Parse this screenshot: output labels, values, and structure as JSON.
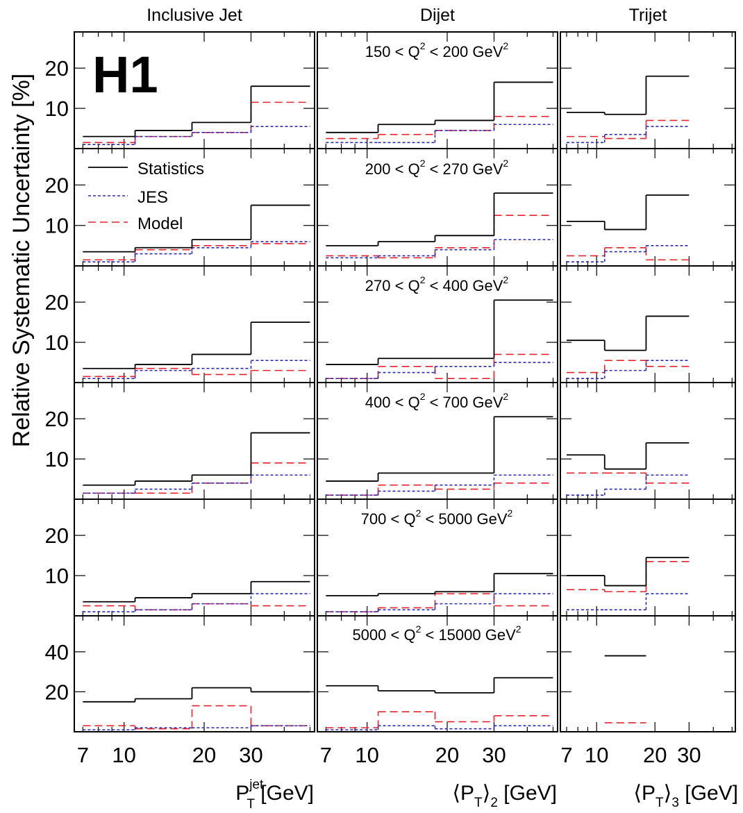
{
  "figure": {
    "ylabel": "Relative Systematic Uncertainty [%]",
    "logo": "H1",
    "column_titles": [
      "Inclusive Jet",
      "Dijet",
      "Trijet"
    ],
    "x_axis_labels": [
      {
        "base": "P",
        "sub": "T",
        "sup": "jet",
        "unit": " [GeV]"
      },
      {
        "base": "⟨P",
        "sub": "T",
        "close": "⟩",
        "sub2": "2",
        "unit": " [GeV]"
      },
      {
        "base": "⟨P",
        "sub": "T",
        "close": "⟩",
        "sub2": "3",
        "unit": " [GeV]"
      }
    ],
    "row_labels": [
      {
        "pre": "150 < Q",
        "sup": "2",
        "post": " < 200 GeV",
        "sup2": "2"
      },
      {
        "pre": "200 < Q",
        "sup": "2",
        "post": " < 270 GeV",
        "sup2": "2"
      },
      {
        "pre": "270 < Q",
        "sup": "2",
        "post": " < 400 GeV",
        "sup2": "2"
      },
      {
        "pre": "400 < Q",
        "sup": "2",
        "post": " < 700 GeV",
        "sup2": "2"
      },
      {
        "pre": "700 < Q",
        "sup": "2",
        "post": " < 5000 GeV",
        "sup2": "2"
      },
      {
        "pre": "5000 < Q",
        "sup": "2",
        "post": " < 15000 GeV",
        "sup2": "2"
      }
    ],
    "legend": [
      {
        "name": "Statistics",
        "color": "#000000",
        "dash": "solid"
      },
      {
        "name": "JES",
        "color": "#2a2ab8",
        "dash": "dotted"
      },
      {
        "name": "Model",
        "color": "#e8212a",
        "dash": "dashed"
      }
    ]
  },
  "chart_data": {
    "type": "step-histogram grid",
    "x_scale": "log",
    "xlim": [
      6.5,
      52
    ],
    "x_ticks": [
      7,
      10,
      20,
      30
    ],
    "row_ylim": [
      [
        0,
        29
      ],
      [
        0,
        29
      ],
      [
        0,
        29
      ],
      [
        0,
        29
      ],
      [
        0,
        29
      ],
      [
        0,
        58
      ]
    ],
    "row_yticks": [
      [
        10,
        20
      ],
      [
        10,
        20
      ],
      [
        10,
        20
      ],
      [
        10,
        20
      ],
      [
        10,
        20
      ],
      [
        20,
        40
      ]
    ],
    "bin_edges": {
      "inclusive": [
        7,
        11,
        18,
        30,
        50
      ],
      "dijet": [
        7,
        11,
        18,
        30,
        50
      ],
      "trijet": [
        7,
        11,
        18,
        30
      ]
    },
    "panels": [
      {
        "row": 0,
        "col": 0,
        "Statistics": [
          3,
          4.5,
          6.5,
          15.5
        ],
        "JES": [
          1,
          3,
          4,
          5.5
        ],
        "Model": [
          1.5,
          3,
          4,
          11.5
        ]
      },
      {
        "row": 0,
        "col": 1,
        "Statistics": [
          4,
          6,
          7,
          16.5
        ],
        "JES": [
          1.5,
          1.5,
          4.5,
          6
        ],
        "Model": [
          2.5,
          3.5,
          4.5,
          8
        ]
      },
      {
        "row": 0,
        "col": 2,
        "Statistics": [
          9,
          8.5,
          18
        ],
        "JES": [
          1.5,
          3.5,
          5.5
        ],
        "Model": [
          3,
          2.5,
          7
        ]
      },
      {
        "row": 1,
        "col": 0,
        "Statistics": [
          3.5,
          4.5,
          6.5,
          15
        ],
        "JES": [
          1,
          3,
          4.5,
          6
        ],
        "Model": [
          1.5,
          4,
          5,
          5.5
        ]
      },
      {
        "row": 1,
        "col": 1,
        "Statistics": [
          5,
          6,
          7.5,
          18
        ],
        "JES": [
          2,
          2.5,
          4,
          6.5
        ],
        "Model": [
          2.5,
          2,
          4.5,
          12.5
        ]
      },
      {
        "row": 1,
        "col": 2,
        "Statistics": [
          11,
          9,
          17.5
        ],
        "JES": [
          1,
          3.5,
          5
        ],
        "Model": [
          2.5,
          4.5,
          1.5
        ]
      },
      {
        "row": 2,
        "col": 0,
        "Statistics": [
          3.5,
          4.5,
          7,
          15
        ],
        "JES": [
          1,
          3,
          3.5,
          5.5
        ],
        "Model": [
          1.5,
          3.5,
          2,
          3
        ]
      },
      {
        "row": 2,
        "col": 1,
        "Statistics": [
          4.5,
          6,
          6,
          20.5
        ],
        "JES": [
          1,
          2.5,
          4,
          5
        ],
        "Model": [
          1,
          4,
          1,
          7
        ]
      },
      {
        "row": 2,
        "col": 2,
        "Statistics": [
          10.5,
          8,
          16.5
        ],
        "JES": [
          1,
          3,
          5.5
        ],
        "Model": [
          2.5,
          5.5,
          4
        ]
      },
      {
        "row": 3,
        "col": 0,
        "Statistics": [
          3.5,
          4.5,
          6,
          16.5
        ],
        "JES": [
          1.5,
          2.5,
          4,
          6
        ],
        "Model": [
          1.5,
          1.5,
          4,
          9
        ]
      },
      {
        "row": 3,
        "col": 1,
        "Statistics": [
          4.5,
          6.5,
          6.5,
          20.5
        ],
        "JES": [
          1,
          2,
          3.5,
          6
        ],
        "Model": [
          1,
          3.5,
          2.5,
          4
        ]
      },
      {
        "row": 3,
        "col": 2,
        "Statistics": [
          11,
          7.5,
          14
        ],
        "JES": [
          1,
          2.5,
          6
        ],
        "Model": [
          6.5,
          6.5,
          4
        ]
      },
      {
        "row": 4,
        "col": 0,
        "Statistics": [
          3.5,
          4.5,
          5.5,
          8.5
        ],
        "JES": [
          1,
          1.5,
          3,
          5.5
        ],
        "Model": [
          2.5,
          1.5,
          3,
          2.5
        ]
      },
      {
        "row": 4,
        "col": 1,
        "Statistics": [
          5,
          5.5,
          6,
          10.5
        ],
        "JES": [
          1,
          1.5,
          3,
          5.5
        ],
        "Model": [
          1,
          2,
          5.5,
          2.5
        ]
      },
      {
        "row": 4,
        "col": 2,
        "Statistics": [
          10,
          7.5,
          14.5
        ],
        "JES": [
          1.5,
          1.5,
          5.5
        ],
        "Model": [
          6.5,
          6,
          13.5
        ]
      },
      {
        "row": 5,
        "col": 0,
        "Statistics": [
          15,
          16.5,
          22,
          20
        ],
        "JES": [
          1,
          2,
          2,
          3
        ],
        "Model": [
          3,
          1.5,
          13,
          3
        ]
      },
      {
        "row": 5,
        "col": 1,
        "Statistics": [
          23,
          20.5,
          19.5,
          27
        ],
        "JES": [
          1,
          3,
          1.5,
          3
        ],
        "Model": [
          2,
          10,
          5,
          8
        ]
      },
      {
        "row": 5,
        "col": 2,
        "Statistics": [
          null,
          38,
          null
        ],
        "JES": [
          null,
          null,
          null
        ],
        "Model": [
          null,
          4.5,
          null
        ]
      }
    ]
  }
}
